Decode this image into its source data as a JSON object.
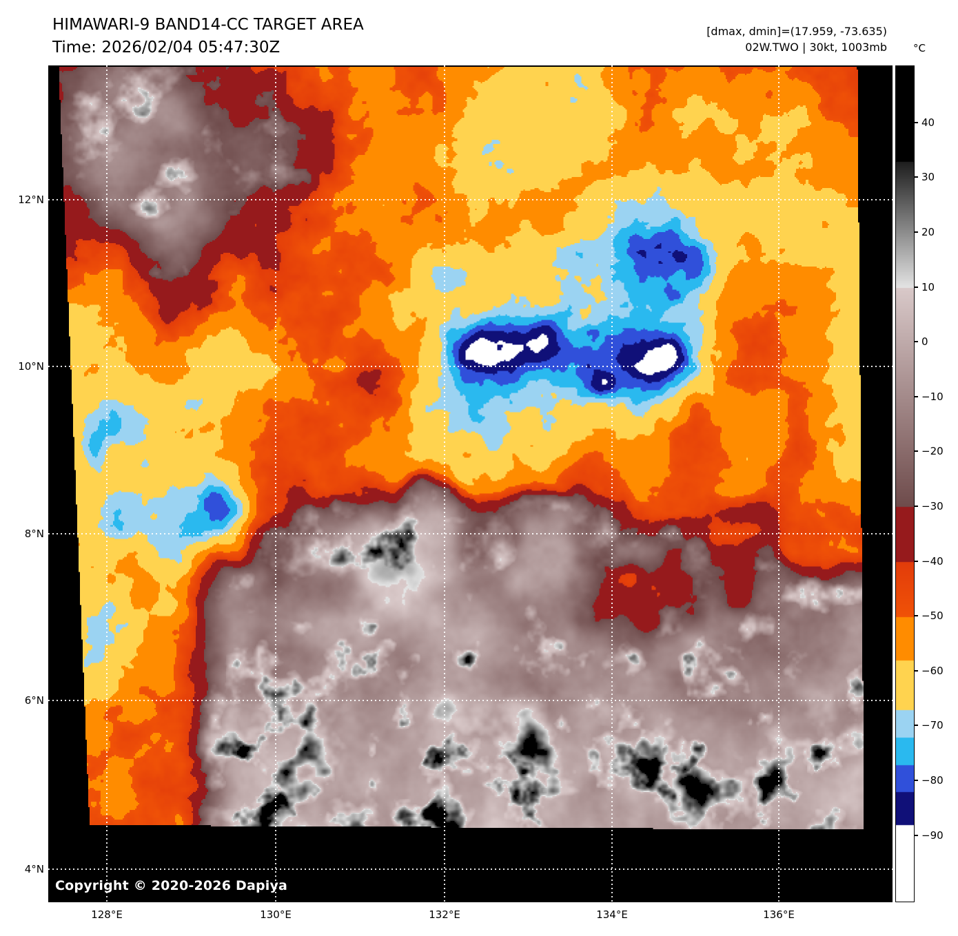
{
  "header": {
    "title": "HIMAWARI-9 BAND14-CC TARGET AREA",
    "time": "Time: 2026/02/04 05:47:30Z",
    "dmax_dmin": "[dmax, dmin]=(17.959, -73.635)",
    "storm": "02W.TWO | 30kt, 1003mb"
  },
  "axes": {
    "lat_ticks": [
      "12°N",
      "10°N",
      "8°N",
      "6°N",
      "4°N"
    ],
    "lon_ticks": [
      "128°E",
      "130°E",
      "132°E",
      "134°E",
      "136°E"
    ]
  },
  "colorbar": {
    "unit": "°C",
    "tick_values": [
      40,
      30,
      20,
      10,
      0,
      -10,
      -20,
      -30,
      -40,
      -50,
      -60,
      -70,
      -80,
      -90
    ],
    "segments": [
      {
        "from": 999,
        "to": 33,
        "c0": "#000000",
        "c1": "#000000"
      },
      {
        "from": 33,
        "to": 10,
        "c0": "#1e1e1e",
        "c1": "#e4e4e4"
      },
      {
        "from": 10,
        "to": -30,
        "c0": "#d9c9c9",
        "c1": "#6e4b4b"
      },
      {
        "from": -30,
        "to": -40,
        "c0": "#961a1c",
        "c1": "#961a1c"
      },
      {
        "from": -40,
        "to": -50,
        "c0": "#e23c0a",
        "c1": "#f05207"
      },
      {
        "from": -50,
        "to": -58,
        "c0": "#ff8c00",
        "c1": "#ff8c00"
      },
      {
        "from": -58,
        "to": -67,
        "c0": "#ffd34f",
        "c1": "#ffd34f"
      },
      {
        "from": -67,
        "to": -72,
        "c0": "#9bd3f2",
        "c1": "#9bd3f2"
      },
      {
        "from": -72,
        "to": -77,
        "c0": "#2ab9ef",
        "c1": "#2ab9ef"
      },
      {
        "from": -77,
        "to": -82,
        "c0": "#3050da",
        "c1": "#3050da"
      },
      {
        "from": -82,
        "to": -88,
        "c0": "#101078",
        "c1": "#101078"
      },
      {
        "from": -88,
        "to": -999,
        "c0": "#ffffff",
        "c1": "#ffffff"
      }
    ]
  },
  "map": {
    "copyright": "Copyright © 2020-2026 Dapiya"
  }
}
